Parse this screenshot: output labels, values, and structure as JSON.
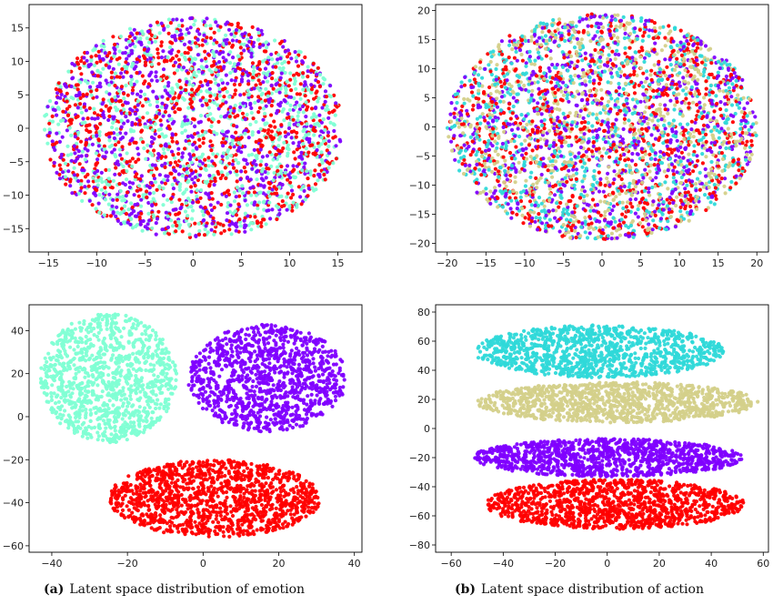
{
  "captions": [
    {
      "tag": "(a)",
      "text": "Latent space distribution of emotion"
    },
    {
      "tag": "(b)",
      "text": "Latent space distribution of action"
    }
  ],
  "chart_data": [
    {
      "type": "scatter",
      "title": "",
      "xlabel": "",
      "ylabel": "",
      "xlim": [
        -17,
        17.5
      ],
      "ylim": [
        -18.5,
        18.5
      ],
      "xticks": [
        -15,
        -10,
        -5,
        0,
        5,
        10,
        15
      ],
      "yticks": [
        -15,
        -10,
        -5,
        0,
        5,
        10,
        15
      ],
      "grid": false,
      "series": [
        {
          "color": "#7fffd4",
          "clusters": [
            {
              "cx": 0,
              "cy": 0,
              "rx": 15.5,
              "ry": 16.5,
              "n": 900
            }
          ]
        },
        {
          "color": "#8000ff",
          "clusters": [
            {
              "cx": 0,
              "cy": 0,
              "rx": 15.5,
              "ry": 16.5,
              "n": 900
            }
          ]
        },
        {
          "color": "#ff0000",
          "clusters": [
            {
              "cx": 0,
              "cy": 0,
              "rx": 15.5,
              "ry": 16.5,
              "n": 900
            }
          ]
        }
      ]
    },
    {
      "type": "scatter",
      "title": "",
      "xlabel": "",
      "ylabel": "",
      "xlim": [
        -21.5,
        21.5
      ],
      "ylim": [
        -21.5,
        21
      ],
      "xticks": [
        -20,
        -15,
        -10,
        -5,
        0,
        5,
        10,
        15,
        20
      ],
      "yticks": [
        -20,
        -15,
        -10,
        -5,
        0,
        5,
        10,
        15,
        20
      ],
      "grid": false,
      "series": [
        {
          "color": "#2fd9d9",
          "clusters": [
            {
              "cx": 0,
              "cy": 0,
              "rx": 20,
              "ry": 19.5,
              "n": 800
            }
          ]
        },
        {
          "color": "#d4d08a",
          "clusters": [
            {
              "cx": 0,
              "cy": 0,
              "rx": 20,
              "ry": 19.5,
              "n": 800
            }
          ]
        },
        {
          "color": "#8000ff",
          "clusters": [
            {
              "cx": 0,
              "cy": 0,
              "rx": 20,
              "ry": 19.5,
              "n": 800
            }
          ]
        },
        {
          "color": "#ff0000",
          "clusters": [
            {
              "cx": 0,
              "cy": 0,
              "rx": 20,
              "ry": 19.5,
              "n": 800
            }
          ]
        }
      ]
    },
    {
      "type": "scatter",
      "title": "",
      "xlabel": "",
      "ylabel": "",
      "xlim": [
        -46,
        42
      ],
      "ylim": [
        -63,
        52
      ],
      "xticks": [
        -40,
        -20,
        0,
        20,
        40
      ],
      "yticks": [
        -60,
        -40,
        -20,
        0,
        20,
        40
      ],
      "grid": false,
      "series": [
        {
          "color": "#7fffd4",
          "clusters": [
            {
              "cx": -25,
              "cy": 18,
              "rx": 18,
              "ry": 30,
              "n": 1100
            }
          ]
        },
        {
          "color": "#8000ff",
          "clusters": [
            {
              "cx": 17,
              "cy": 18,
              "rx": 21,
              "ry": 25,
              "n": 1100
            }
          ]
        },
        {
          "color": "#ff0000",
          "clusters": [
            {
              "cx": 3,
              "cy": -38,
              "rx": 28,
              "ry": 18,
              "n": 1300
            }
          ]
        }
      ]
    },
    {
      "type": "scatter",
      "title": "",
      "xlabel": "",
      "ylabel": "",
      "xlim": [
        -66,
        62
      ],
      "ylim": [
        -85,
        85
      ],
      "xticks": [
        -60,
        -40,
        -20,
        0,
        20,
        40,
        60
      ],
      "yticks": [
        -80,
        -60,
        -40,
        -20,
        0,
        20,
        40,
        60,
        80
      ],
      "grid": false,
      "series": [
        {
          "color": "#2fd9d9",
          "clusters": [
            {
              "cx": -3,
              "cy": 53,
              "rx": 48,
              "ry": 18,
              "n": 1100
            }
          ]
        },
        {
          "color": "#d4d08a",
          "clusters": [
            {
              "cx": 4,
              "cy": 18,
              "rx": 54,
              "ry": 14,
              "n": 1100
            }
          ]
        },
        {
          "color": "#8000ff",
          "clusters": [
            {
              "cx": 0,
              "cy": -20,
              "rx": 52,
              "ry": 13,
              "n": 1100
            }
          ]
        },
        {
          "color": "#ff0000",
          "clusters": [
            {
              "cx": 3,
              "cy": -52,
              "rx": 50,
              "ry": 17,
              "n": 1200
            }
          ]
        }
      ]
    }
  ]
}
